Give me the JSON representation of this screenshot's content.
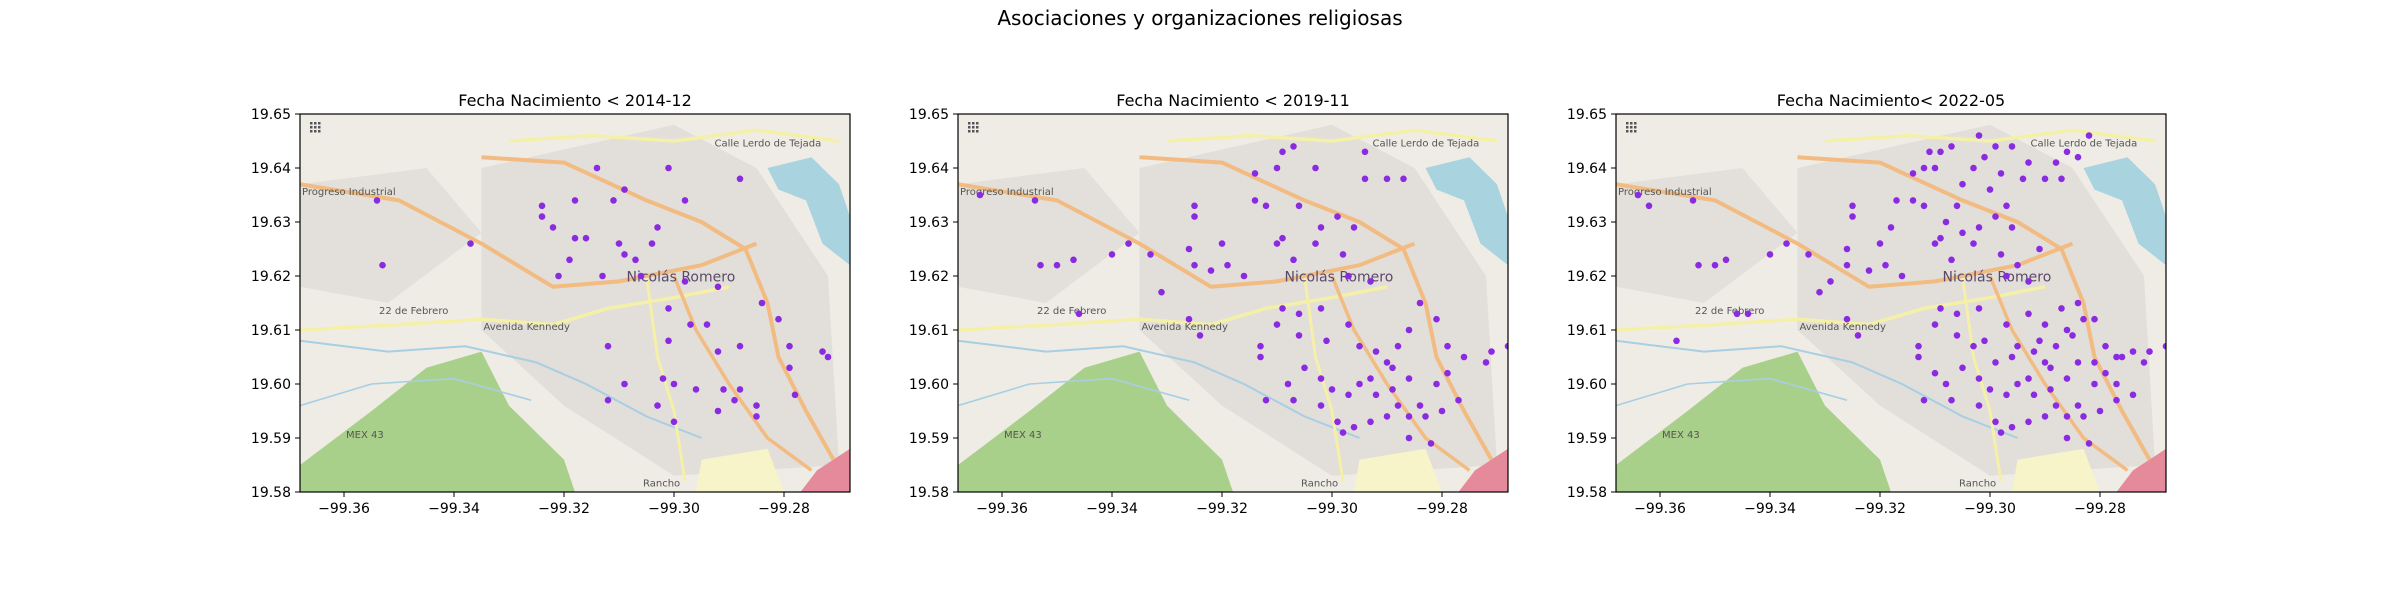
{
  "figure": {
    "title": "Asociaciones y organizaciones religiosas"
  },
  "chart_data": [
    {
      "type": "scatter",
      "title": "Fecha Nacimiento < 2014-12",
      "xlabel": "",
      "ylabel": "",
      "xlim": [
        -99.368,
        -99.268
      ],
      "ylim": [
        19.58,
        19.65
      ],
      "xticks": [
        -99.36,
        -99.34,
        -99.32,
        -99.3,
        -99.28
      ],
      "yticks": [
        19.58,
        19.59,
        19.6,
        19.61,
        19.62,
        19.63,
        19.64,
        19.65
      ],
      "grid": false,
      "marker_color": "#8a2be2",
      "points": [
        [
          -99.354,
          19.634
        ],
        [
          -99.353,
          19.622
        ],
        [
          -99.337,
          19.626
        ],
        [
          -99.324,
          19.633
        ],
        [
          -99.324,
          19.631
        ],
        [
          -99.318,
          19.634
        ],
        [
          -99.314,
          19.64
        ],
        [
          -99.322,
          19.629
        ],
        [
          -99.318,
          19.627
        ],
        [
          -99.316,
          19.627
        ],
        [
          -99.319,
          19.623
        ],
        [
          -99.321,
          19.62
        ],
        [
          -99.311,
          19.634
        ],
        [
          -99.309,
          19.636
        ],
        [
          -99.31,
          19.626
        ],
        [
          -99.309,
          19.624
        ],
        [
          -99.307,
          19.623
        ],
        [
          -99.303,
          19.629
        ],
        [
          -99.304,
          19.626
        ],
        [
          -99.301,
          19.64
        ],
        [
          -99.298,
          19.634
        ],
        [
          -99.288,
          19.638
        ],
        [
          -99.306,
          19.62
        ],
        [
          -99.298,
          19.619
        ],
        [
          -99.292,
          19.618
        ],
        [
          -99.284,
          19.615
        ],
        [
          -99.313,
          19.62
        ],
        [
          -99.301,
          19.614
        ],
        [
          -99.297,
          19.611
        ],
        [
          -99.294,
          19.611
        ],
        [
          -99.301,
          19.608
        ],
        [
          -99.288,
          19.607
        ],
        [
          -99.281,
          19.612
        ],
        [
          -99.279,
          19.607
        ],
        [
          -99.273,
          19.606
        ],
        [
          -99.272,
          19.605
        ],
        [
          -99.312,
          19.607
        ],
        [
          -99.302,
          19.601
        ],
        [
          -99.3,
          19.6
        ],
        [
          -99.296,
          19.599
        ],
        [
          -99.291,
          19.599
        ],
        [
          -99.288,
          19.599
        ],
        [
          -99.289,
          19.597
        ],
        [
          -99.292,
          19.595
        ],
        [
          -99.285,
          19.596
        ],
        [
          -99.285,
          19.594
        ],
        [
          -99.279,
          19.603
        ],
        [
          -99.278,
          19.598
        ],
        [
          -99.3,
          19.593
        ],
        [
          -99.303,
          19.596
        ],
        [
          -99.309,
          19.6
        ],
        [
          -99.312,
          19.597
        ],
        [
          -99.292,
          19.606
        ]
      ]
    },
    {
      "type": "scatter",
      "title": "Fecha Nacimiento < 2019-11",
      "xlabel": "",
      "ylabel": "",
      "xlim": [
        -99.368,
        -99.268
      ],
      "ylim": [
        19.58,
        19.65
      ],
      "xticks": [
        -99.36,
        -99.34,
        -99.32,
        -99.3,
        -99.28
      ],
      "yticks": [
        19.58,
        19.59,
        19.6,
        19.61,
        19.62,
        19.63,
        19.64,
        19.65
      ],
      "grid": false,
      "marker_color": "#8a2be2",
      "points": [
        [
          -99.364,
          19.635
        ],
        [
          -99.354,
          19.634
        ],
        [
          -99.353,
          19.622
        ],
        [
          -99.35,
          19.622
        ],
        [
          -99.347,
          19.623
        ],
        [
          -99.346,
          19.613
        ],
        [
          -99.34,
          19.624
        ],
        [
          -99.337,
          19.626
        ],
        [
          -99.333,
          19.624
        ],
        [
          -99.331,
          19.617
        ],
        [
          -99.325,
          19.633
        ],
        [
          -99.325,
          19.631
        ],
        [
          -99.326,
          19.625
        ],
        [
          -99.325,
          19.622
        ],
        [
          -99.326,
          19.612
        ],
        [
          -99.324,
          19.609
        ],
        [
          -99.322,
          19.621
        ],
        [
          -99.32,
          19.626
        ],
        [
          -99.319,
          19.622
        ],
        [
          -99.316,
          19.62
        ],
        [
          -99.314,
          19.634
        ],
        [
          -99.314,
          19.639
        ],
        [
          -99.31,
          19.64
        ],
        [
          -99.309,
          19.643
        ],
        [
          -99.307,
          19.644
        ],
        [
          -99.312,
          19.633
        ],
        [
          -99.306,
          19.633
        ],
        [
          -99.303,
          19.64
        ],
        [
          -99.309,
          19.627
        ],
        [
          -99.31,
          19.626
        ],
        [
          -99.307,
          19.623
        ],
        [
          -99.303,
          19.626
        ],
        [
          -99.302,
          19.629
        ],
        [
          -99.299,
          19.631
        ],
        [
          -99.296,
          19.629
        ],
        [
          -99.294,
          19.638
        ],
        [
          -99.29,
          19.638
        ],
        [
          -99.287,
          19.638
        ],
        [
          -99.294,
          19.643
        ],
        [
          -99.298,
          19.624
        ],
        [
          -99.297,
          19.62
        ],
        [
          -99.293,
          19.619
        ],
        [
          -99.302,
          19.614
        ],
        [
          -99.306,
          19.613
        ],
        [
          -99.309,
          19.614
        ],
        [
          -99.31,
          19.611
        ],
        [
          -99.306,
          19.609
        ],
        [
          -99.313,
          19.607
        ],
        [
          -99.313,
          19.605
        ],
        [
          -99.301,
          19.608
        ],
        [
          -99.297,
          19.611
        ],
        [
          -99.295,
          19.607
        ],
        [
          -99.292,
          19.606
        ],
        [
          -99.29,
          19.604
        ],
        [
          -99.288,
          19.607
        ],
        [
          -99.286,
          19.61
        ],
        [
          -99.284,
          19.615
        ],
        [
          -99.281,
          19.612
        ],
        [
          -99.279,
          19.607
        ],
        [
          -99.276,
          19.605
        ],
        [
          -99.272,
          19.604
        ],
        [
          -99.271,
          19.606
        ],
        [
          -99.268,
          19.607
        ],
        [
          -99.312,
          19.597
        ],
        [
          -99.308,
          19.6
        ],
        [
          -99.305,
          19.603
        ],
        [
          -99.302,
          19.601
        ],
        [
          -99.3,
          19.599
        ],
        [
          -99.297,
          19.598
        ],
        [
          -99.295,
          19.6
        ],
        [
          -99.292,
          19.598
        ],
        [
          -99.289,
          19.599
        ],
        [
          -99.286,
          19.601
        ],
        [
          -99.284,
          19.596
        ],
        [
          -99.286,
          19.594
        ],
        [
          -99.288,
          19.596
        ],
        [
          -99.29,
          19.594
        ],
        [
          -99.293,
          19.593
        ],
        [
          -99.296,
          19.592
        ],
        [
          -99.299,
          19.593
        ],
        [
          -99.302,
          19.596
        ],
        [
          -99.281,
          19.6
        ],
        [
          -99.279,
          19.602
        ],
        [
          -99.277,
          19.597
        ],
        [
          -99.28,
          19.595
        ],
        [
          -99.283,
          19.594
        ],
        [
          -99.286,
          19.59
        ],
        [
          -99.282,
          19.589
        ],
        [
          -99.298,
          19.591
        ],
        [
          -99.307,
          19.597
        ],
        [
          -99.289,
          19.603
        ],
        [
          -99.293,
          19.601
        ]
      ]
    },
    {
      "type": "scatter",
      "title": "Fecha Nacimiento< 2022-05",
      "xlabel": "",
      "ylabel": "",
      "xlim": [
        -99.368,
        -99.268
      ],
      "ylim": [
        19.58,
        19.65
      ],
      "xticks": [
        -99.36,
        -99.34,
        -99.32,
        -99.3,
        -99.28
      ],
      "yticks": [
        19.58,
        19.59,
        19.6,
        19.61,
        19.62,
        19.63,
        19.64,
        19.65
      ],
      "grid": false,
      "marker_color": "#8a2be2",
      "points": [
        [
          -99.364,
          19.635
        ],
        [
          -99.362,
          19.633
        ],
        [
          -99.357,
          19.608
        ],
        [
          -99.354,
          19.634
        ],
        [
          -99.353,
          19.622
        ],
        [
          -99.35,
          19.622
        ],
        [
          -99.348,
          19.623
        ],
        [
          -99.346,
          19.613
        ],
        [
          -99.344,
          19.613
        ],
        [
          -99.34,
          19.624
        ],
        [
          -99.337,
          19.626
        ],
        [
          -99.333,
          19.624
        ],
        [
          -99.331,
          19.617
        ],
        [
          -99.329,
          19.619
        ],
        [
          -99.326,
          19.625
        ],
        [
          -99.326,
          19.622
        ],
        [
          -99.326,
          19.612
        ],
        [
          -99.325,
          19.633
        ],
        [
          -99.325,
          19.631
        ],
        [
          -99.324,
          19.609
        ],
        [
          -99.322,
          19.621
        ],
        [
          -99.32,
          19.626
        ],
        [
          -99.319,
          19.622
        ],
        [
          -99.318,
          19.629
        ],
        [
          -99.317,
          19.634
        ],
        [
          -99.316,
          19.62
        ],
        [
          -99.314,
          19.634
        ],
        [
          -99.314,
          19.639
        ],
        [
          -99.312,
          19.633
        ],
        [
          -99.312,
          19.64
        ],
        [
          -99.311,
          19.643
        ],
        [
          -99.31,
          19.64
        ],
        [
          -99.309,
          19.643
        ],
        [
          -99.308,
          19.63
        ],
        [
          -99.307,
          19.644
        ],
        [
          -99.306,
          19.633
        ],
        [
          -99.305,
          19.637
        ],
        [
          -99.303,
          19.64
        ],
        [
          -99.302,
          19.646
        ],
        [
          -99.301,
          19.642
        ],
        [
          -99.3,
          19.636
        ],
        [
          -99.299,
          19.644
        ],
        [
          -99.298,
          19.639
        ],
        [
          -99.296,
          19.644
        ],
        [
          -99.294,
          19.638
        ],
        [
          -99.293,
          19.641
        ],
        [
          -99.29,
          19.638
        ],
        [
          -99.288,
          19.641
        ],
        [
          -99.287,
          19.638
        ],
        [
          -99.286,
          19.643
        ],
        [
          -99.284,
          19.642
        ],
        [
          -99.282,
          19.646
        ],
        [
          -99.309,
          19.627
        ],
        [
          -99.31,
          19.626
        ],
        [
          -99.307,
          19.623
        ],
        [
          -99.305,
          19.628
        ],
        [
          -99.303,
          19.626
        ],
        [
          -99.302,
          19.629
        ],
        [
          -99.299,
          19.631
        ],
        [
          -99.297,
          19.633
        ],
        [
          -99.296,
          19.629
        ],
        [
          -99.298,
          19.624
        ],
        [
          -99.297,
          19.62
        ],
        [
          -99.295,
          19.622
        ],
        [
          -99.293,
          19.619
        ],
        [
          -99.291,
          19.625
        ],
        [
          -99.302,
          19.614
        ],
        [
          -99.306,
          19.613
        ],
        [
          -99.309,
          19.614
        ],
        [
          -99.31,
          19.611
        ],
        [
          -99.306,
          19.609
        ],
        [
          -99.313,
          19.607
        ],
        [
          -99.313,
          19.605
        ],
        [
          -99.301,
          19.608
        ],
        [
          -99.297,
          19.611
        ],
        [
          -99.295,
          19.607
        ],
        [
          -99.292,
          19.606
        ],
        [
          -99.29,
          19.604
        ],
        [
          -99.288,
          19.607
        ],
        [
          -99.286,
          19.61
        ],
        [
          -99.284,
          19.615
        ],
        [
          -99.283,
          19.612
        ],
        [
          -99.281,
          19.612
        ],
        [
          -99.279,
          19.607
        ],
        [
          -99.277,
          19.605
        ],
        [
          -99.276,
          19.605
        ],
        [
          -99.274,
          19.606
        ],
        [
          -99.272,
          19.604
        ],
        [
          -99.271,
          19.606
        ],
        [
          -99.268,
          19.607
        ],
        [
          -99.312,
          19.597
        ],
        [
          -99.31,
          19.602
        ],
        [
          -99.308,
          19.6
        ],
        [
          -99.305,
          19.603
        ],
        [
          -99.302,
          19.601
        ],
        [
          -99.3,
          19.599
        ],
        [
          -99.297,
          19.598
        ],
        [
          -99.295,
          19.6
        ],
        [
          -99.293,
          19.601
        ],
        [
          -99.292,
          19.598
        ],
        [
          -99.289,
          19.599
        ],
        [
          -99.289,
          19.603
        ],
        [
          -99.286,
          19.601
        ],
        [
          -99.284,
          19.596
        ],
        [
          -99.286,
          19.594
        ],
        [
          -99.288,
          19.596
        ],
        [
          -99.29,
          19.594
        ],
        [
          -99.293,
          19.593
        ],
        [
          -99.296,
          19.592
        ],
        [
          -99.299,
          19.593
        ],
        [
          -99.302,
          19.596
        ],
        [
          -99.281,
          19.6
        ],
        [
          -99.279,
          19.602
        ],
        [
          -99.277,
          19.597
        ],
        [
          -99.28,
          19.595
        ],
        [
          -99.283,
          19.594
        ],
        [
          -99.286,
          19.59
        ],
        [
          -99.282,
          19.589
        ],
        [
          -99.298,
          19.591
        ],
        [
          -99.307,
          19.597
        ],
        [
          -99.29,
          19.611
        ],
        [
          -99.287,
          19.614
        ],
        [
          -99.285,
          19.609
        ],
        [
          -99.293,
          19.613
        ],
        [
          -99.296,
          19.605
        ],
        [
          -99.299,
          19.604
        ],
        [
          -99.303,
          19.607
        ],
        [
          -99.284,
          19.604
        ],
        [
          -99.281,
          19.604
        ],
        [
          -99.277,
          19.6
        ],
        [
          -99.274,
          19.598
        ],
        [
          -99.291,
          19.608
        ]
      ]
    }
  ],
  "map": {
    "labels": [
      {
        "text": "Progreso Industrial",
        "lon": -99.368,
        "lat": 19.635
      },
      {
        "text": "22 de Febrero",
        "lon": -99.354,
        "lat": 19.613
      },
      {
        "text": "Avenida Kennedy",
        "lon": -99.335,
        "lat": 19.61
      },
      {
        "text": "Calle Lerdo de Tejada",
        "lon": -99.293,
        "lat": 19.644
      },
      {
        "text": "Nicolás Romero",
        "lon": -99.309,
        "lat": 19.619
      },
      {
        "text": "MEX 43",
        "lon": -99.36,
        "lat": 19.59
      },
      {
        "text": "Rancho",
        "lon": -99.306,
        "lat": 19.581
      }
    ],
    "colors": {
      "background": "#efece6",
      "urban": "#dedbd6",
      "park": "#a9d08b",
      "water": "#a9d3df",
      "major_road": "#f2bb82",
      "secondary_road": "#f5f0a8",
      "stream": "#a7cfe3",
      "industrial": "#f5d6dd",
      "yellow_area": "#f6f4c8"
    },
    "attribution_icon": "grid-dots-icon"
  }
}
